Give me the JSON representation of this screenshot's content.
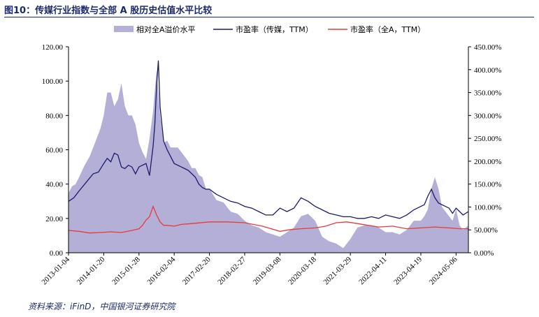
{
  "header": {
    "title": "图10：传媒行业指数与全部 A 股历史估值水平比较"
  },
  "footer": {
    "source": "资料来源：iFinD，中国银河证券研究院"
  },
  "chart_data": {
    "type": "line",
    "title": "图10：传媒行业指数与全部 A 股历史估值水平比较",
    "legend": [
      "相对全A溢价水平",
      "市盈率（传媒，TTM）",
      "市盈率（全A，TTM）"
    ],
    "legend_position": "top",
    "colors": {
      "premium": "#b3afd6",
      "media": "#1d1a6e",
      "all_a": "#e83a3a"
    },
    "x_tick_labels": [
      "2013-01-04",
      "2014-01-20",
      "2015-01-28",
      "2016-02-04",
      "2017-02-20",
      "2018-02-27",
      "2019-03-08",
      "2020-03-18",
      "2021-03-29",
      "2022-04-11",
      "2023-04-19",
      "2024-05-06"
    ],
    "y_left_ticks": [
      "0.00",
      "20.00",
      "40.00",
      "60.00",
      "80.00",
      "100.00",
      "120.00"
    ],
    "y_right_ticks": [
      "0.00%",
      "50.00%",
      "100.00%",
      "150.00%",
      "200.00%",
      "250.00%",
      "300.00%",
      "350.00%",
      "400.00%",
      "450.00%"
    ],
    "ylim_left": [
      0,
      120
    ],
    "ylim_right": [
      0,
      450
    ],
    "x_range": [
      0,
      11.35
    ],
    "series": [
      {
        "name": "相对全A溢价水平",
        "kind": "area",
        "axis": "right",
        "x": [
          0,
          0.1,
          0.2,
          0.3,
          0.45,
          0.6,
          0.75,
          0.9,
          1.0,
          1.1,
          1.2,
          1.3,
          1.4,
          1.5,
          1.6,
          1.7,
          1.8,
          1.9,
          2.0,
          2.1,
          2.2,
          2.3,
          2.4,
          2.5,
          2.6,
          2.7,
          2.8,
          2.9,
          3.0,
          3.1,
          3.2,
          3.3,
          3.4,
          3.5,
          3.6,
          3.7,
          3.8,
          3.9,
          4.0,
          4.2,
          4.4,
          4.6,
          4.8,
          5.0,
          5.2,
          5.4,
          5.6,
          5.8,
          6.0,
          6.2,
          6.4,
          6.6,
          6.8,
          7.0,
          7.2,
          7.4,
          7.6,
          7.8,
          8.0,
          8.2,
          8.4,
          8.6,
          8.8,
          9.0,
          9.2,
          9.4,
          9.6,
          9.8,
          10.0,
          10.1,
          10.2,
          10.3,
          10.4,
          10.5,
          10.6,
          10.7,
          10.8,
          10.9,
          11.0,
          11.1,
          11.2,
          11.35
        ],
        "values": [
          130,
          145,
          150,
          165,
          190,
          210,
          240,
          270,
          300,
          350,
          350,
          320,
          335,
          370,
          320,
          300,
          300,
          280,
          240,
          220,
          205,
          250,
          310,
          400,
          300,
          240,
          245,
          230,
          230,
          230,
          220,
          210,
          200,
          185,
          185,
          170,
          165,
          140,
          140,
          115,
          110,
          90,
          85,
          70,
          60,
          55,
          45,
          40,
          35,
          45,
          55,
          80,
          85,
          70,
          35,
          25,
          20,
          10,
          30,
          55,
          60,
          60,
          55,
          45,
          45,
          40,
          50,
          70,
          70,
          80,
          95,
          140,
          165,
          140,
          100,
          90,
          80,
          70,
          95,
          60,
          50,
          60
        ]
      },
      {
        "name": "市盈率（传媒，TTM）",
        "kind": "line",
        "axis": "left",
        "x": [
          0,
          0.15,
          0.3,
          0.5,
          0.7,
          0.85,
          1.0,
          1.1,
          1.2,
          1.3,
          1.4,
          1.5,
          1.6,
          1.7,
          1.8,
          1.9,
          2.0,
          2.1,
          2.2,
          2.3,
          2.4,
          2.45,
          2.5,
          2.55,
          2.6,
          2.7,
          2.8,
          2.9,
          3.0,
          3.1,
          3.2,
          3.3,
          3.4,
          3.5,
          3.6,
          3.7,
          3.8,
          3.9,
          4.0,
          4.2,
          4.4,
          4.6,
          4.8,
          5.0,
          5.2,
          5.4,
          5.6,
          5.8,
          6.0,
          6.2,
          6.4,
          6.6,
          6.8,
          7.0,
          7.2,
          7.4,
          7.6,
          7.8,
          8.0,
          8.2,
          8.4,
          8.6,
          8.8,
          9.0,
          9.2,
          9.4,
          9.6,
          9.8,
          10.0,
          10.1,
          10.2,
          10.3,
          10.4,
          10.5,
          10.6,
          10.7,
          10.8,
          10.9,
          11.0,
          11.1,
          11.2,
          11.35
        ],
        "values": [
          30,
          32,
          36,
          41,
          46,
          47,
          52,
          55,
          53,
          58,
          57,
          50,
          49,
          51,
          50,
          46,
          50,
          51,
          52,
          45,
          62,
          75,
          97,
          112,
          85,
          65,
          60,
          56,
          52,
          51,
          50,
          49,
          48,
          46,
          44,
          40,
          38,
          37,
          37,
          34,
          32,
          30,
          29,
          27,
          26,
          24,
          22,
          22,
          26,
          24,
          26,
          32,
          30,
          27,
          25,
          23,
          22,
          21,
          21,
          20,
          20,
          21,
          20,
          22,
          21,
          20,
          22,
          25,
          27,
          28,
          33,
          37,
          32,
          29,
          28,
          27,
          26,
          23,
          26,
          24,
          22,
          24
        ]
      },
      {
        "name": "市盈率（全A，TTM）",
        "kind": "line",
        "axis": "left",
        "x": [
          0,
          0.3,
          0.6,
          0.9,
          1.2,
          1.5,
          1.8,
          2.0,
          2.1,
          2.2,
          2.3,
          2.4,
          2.5,
          2.6,
          2.7,
          2.8,
          3.0,
          3.2,
          3.5,
          4.0,
          4.5,
          5.0,
          5.5,
          6.0,
          6.3,
          6.6,
          7.0,
          7.3,
          7.6,
          7.9,
          8.2,
          8.5,
          8.8,
          9.2,
          9.6,
          10.0,
          10.4,
          10.8,
          11.1,
          11.35
        ],
        "values": [
          13,
          12.5,
          11.5,
          11.8,
          12.2,
          11.8,
          13,
          14,
          16,
          19,
          21,
          27,
          22,
          18,
          16,
          16,
          15.5,
          16.5,
          17,
          18,
          18,
          17.5,
          15.5,
          12.5,
          13.5,
          14,
          14.5,
          15.5,
          17.5,
          18,
          17,
          16,
          15,
          15.5,
          14,
          14.5,
          15,
          14.5,
          14,
          14
        ]
      }
    ]
  }
}
